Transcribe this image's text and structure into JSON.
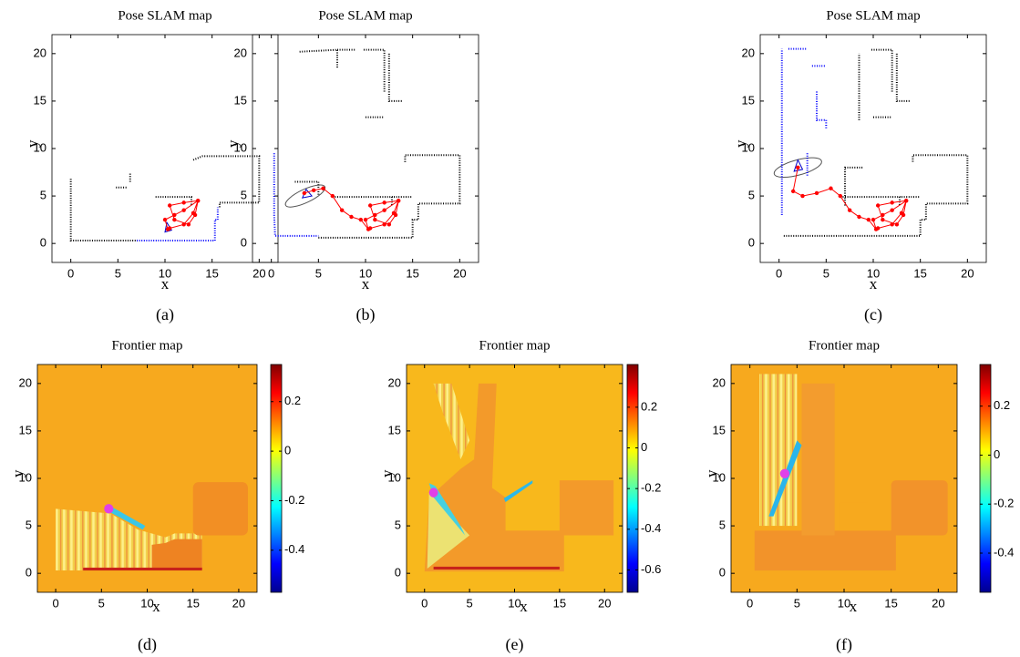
{
  "chart_data": [
    {
      "type": "line",
      "title": "Pose SLAM map",
      "xlabel": "x",
      "ylabel": "y",
      "caption": "(a)",
      "xlim": [
        -2,
        22
      ],
      "ylim": [
        -2,
        22
      ],
      "xticks": [
        0,
        5,
        10,
        15,
        20
      ],
      "yticks": [
        0,
        5,
        10,
        15,
        20
      ],
      "series": [
        {
          "color": "#000000",
          "linestyle": ":",
          "x": [
            0,
            0,
            7,
            null,
            4.8,
            6,
            null,
            6.3,
            6.3,
            null,
            9,
            12.8,
            12.8,
            null,
            13,
            14,
            20,
            20,
            15.8,
            15.8
          ],
          "values": [
            6.8,
            0.3,
            0.3,
            null,
            5.9,
            5.9,
            null,
            6.5,
            7.5,
            null,
            4.9,
            4.9,
            4,
            null,
            8.8,
            9.2,
            9.2,
            4.3,
            4.3,
            3.8
          ]
        },
        {
          "color": "#0000ff",
          "linestyle": ":",
          "x": [
            7,
            15.3,
            15.3,
            15.6,
            15.6
          ],
          "values": [
            0.3,
            0.3,
            2.5,
            2.5,
            3.8
          ]
        },
        {
          "color": "#ff0000",
          "linestyle": "-",
          "marker": "o",
          "x": [
            10.3,
            10,
            11,
            12,
            13.5,
            13.2,
            12.5,
            11,
            10.5,
            12,
            13.5,
            13,
            12,
            10.5
          ],
          "values": [
            1.5,
            2.5,
            3,
            3.5,
            4.5,
            3,
            2,
            2.5,
            4,
            4.3,
            4.5,
            3.2,
            2,
            1.6
          ]
        }
      ]
    },
    {
      "type": "line",
      "title": "Pose SLAM map",
      "xlabel": "x",
      "ylabel": "y",
      "caption": "(b)",
      "xlim": [
        -2,
        22
      ],
      "ylim": [
        -2,
        22
      ],
      "xticks": [
        0,
        5,
        10,
        15,
        20
      ],
      "yticks": [
        0,
        5,
        10,
        15,
        20
      ],
      "series": [
        {
          "color": "#000000",
          "linestyle": ":",
          "x": [
            5,
            15,
            15,
            15.6,
            15.6,
            20,
            20,
            14.2,
            14.2,
            null,
            6.5,
            12.8,
            12.8,
            null,
            13,
            15,
            null,
            2.5,
            5,
            5,
            null,
            3,
            7,
            7,
            null,
            7,
            9,
            null,
            9.8,
            12,
            12,
            null,
            10,
            12,
            null,
            12.5,
            12.5,
            14
          ],
          "values": [
            0.6,
            0.6,
            2.5,
            2.5,
            4.2,
            4.2,
            9.3,
            9.3,
            8.5,
            null,
            4.9,
            4.9,
            4,
            null,
            4.9,
            4.9,
            null,
            6.5,
            6.5,
            5,
            null,
            20.2,
            20.4,
            18.5,
            null,
            20.4,
            20.4,
            null,
            20.4,
            20.4,
            16,
            null,
            13.3,
            13.3,
            null,
            20,
            15,
            15
          ]
        },
        {
          "color": "#0000ff",
          "linestyle": ":",
          "x": [
            0.3,
            0.3,
            0.4,
            5
          ],
          "values": [
            9.5,
            3,
            0.8,
            0.8
          ]
        },
        {
          "color": "#ff0000",
          "linestyle": "-",
          "marker": "o",
          "x": [
            3.5,
            4.5,
            5.5,
            6.5,
            7.5,
            8.5,
            9.5,
            10.3,
            10,
            11,
            12,
            13.5,
            13.2,
            12.5,
            11,
            10.5,
            12,
            13.5,
            13,
            12,
            10.5
          ],
          "values": [
            5.3,
            5.6,
            5.8,
            5,
            3.5,
            2.8,
            2.5,
            1.5,
            2.5,
            3,
            3.5,
            4.5,
            3,
            2,
            2.5,
            4,
            4.3,
            4.5,
            3.2,
            2,
            1.6
          ]
        }
      ]
    },
    {
      "type": "line",
      "title": "Pose SLAM map",
      "xlabel": "x",
      "ylabel": "y",
      "caption": "(c)",
      "xlim": [
        -2,
        22
      ],
      "ylim": [
        -2,
        22
      ],
      "xticks": [
        0,
        5,
        10,
        15,
        20
      ],
      "yticks": [
        0,
        5,
        10,
        15,
        20
      ],
      "series": [
        {
          "color": "#000000",
          "linestyle": ":",
          "x": [
            0.5,
            15,
            15,
            15.6,
            15.6,
            20,
            20,
            14.2,
            14.2,
            null,
            6.5,
            12.8,
            12.8,
            null,
            13,
            15,
            null,
            9.8,
            12,
            12,
            null,
            10,
            12,
            null,
            12.5,
            12.5,
            14,
            null,
            7,
            7,
            9,
            null,
            8.5,
            8.5
          ],
          "values": [
            0.8,
            0.8,
            2.5,
            2.5,
            4.2,
            4.2,
            9.3,
            9.3,
            8.5,
            null,
            4.9,
            4.9,
            4,
            null,
            4.9,
            4.9,
            null,
            20.4,
            20.4,
            16,
            null,
            13.3,
            13.3,
            null,
            20,
            15,
            15,
            null,
            4,
            8,
            8,
            null,
            13,
            20
          ]
        },
        {
          "color": "#0000ff",
          "linestyle": ":",
          "x": [
            0.3,
            0.3,
            null,
            1,
            3,
            null,
            3.5,
            5,
            null,
            4,
            4,
            5,
            5,
            null,
            3,
            3
          ],
          "values": [
            3,
            20.5,
            null,
            20.5,
            20.5,
            null,
            18.7,
            18.7,
            null,
            16,
            13,
            13,
            12,
            null,
            9.5,
            7
          ]
        },
        {
          "color": "#ff0000",
          "linestyle": "-",
          "marker": "o",
          "x": [
            2,
            1.5,
            2.5,
            4,
            5.5,
            6.5,
            7.5,
            8.5,
            9.5,
            10.3,
            10,
            11,
            12,
            13.5,
            13.2,
            12.5,
            11,
            10.5,
            12,
            13.5,
            13,
            12,
            10.5
          ],
          "values": [
            8,
            5.5,
            5,
            5.3,
            5.8,
            5,
            3.5,
            2.8,
            2.5,
            1.5,
            2.5,
            3,
            3.5,
            4.5,
            3,
            2,
            2.5,
            4,
            4.3,
            4.5,
            3.2,
            2,
            1.6
          ]
        }
      ]
    },
    {
      "type": "heatmap",
      "title": "Frontier map",
      "xlabel": "x",
      "ylabel": "y",
      "caption": "(d)",
      "xlim": [
        -2,
        22
      ],
      "ylim": [
        -2,
        22
      ],
      "xticks": [
        0,
        5,
        10,
        15,
        20
      ],
      "yticks": [
        0,
        5,
        10,
        15,
        20
      ],
      "colormap": "jet",
      "clim": [
        -0.57,
        0.35
      ],
      "cticks": [
        -0.4,
        -0.2,
        0,
        0.2
      ]
    },
    {
      "type": "heatmap",
      "title": "Frontier map",
      "xlabel": "x",
      "ylabel": "y",
      "caption": "(e)",
      "xlim": [
        -2,
        22
      ],
      "ylim": [
        -2,
        22
      ],
      "xticks": [
        0,
        5,
        10,
        15,
        20
      ],
      "yticks": [
        0,
        5,
        10,
        15,
        20
      ],
      "colormap": "jet",
      "clim": [
        -0.71,
        0.41
      ],
      "cticks": [
        -0.6,
        -0.4,
        -0.2,
        0,
        0.2
      ]
    },
    {
      "type": "heatmap",
      "title": "Frontier map",
      "xlabel": "x",
      "ylabel": "y",
      "caption": "(f)",
      "xlim": [
        -2,
        22
      ],
      "ylim": [
        -2,
        22
      ],
      "xticks": [
        0,
        5,
        10,
        15,
        20
      ],
      "yticks": [
        0,
        5,
        10,
        15,
        20
      ],
      "colormap": "jet",
      "clim": [
        -0.56,
        0.37
      ],
      "cticks": [
        -0.4,
        -0.2,
        0,
        0.2
      ]
    }
  ]
}
